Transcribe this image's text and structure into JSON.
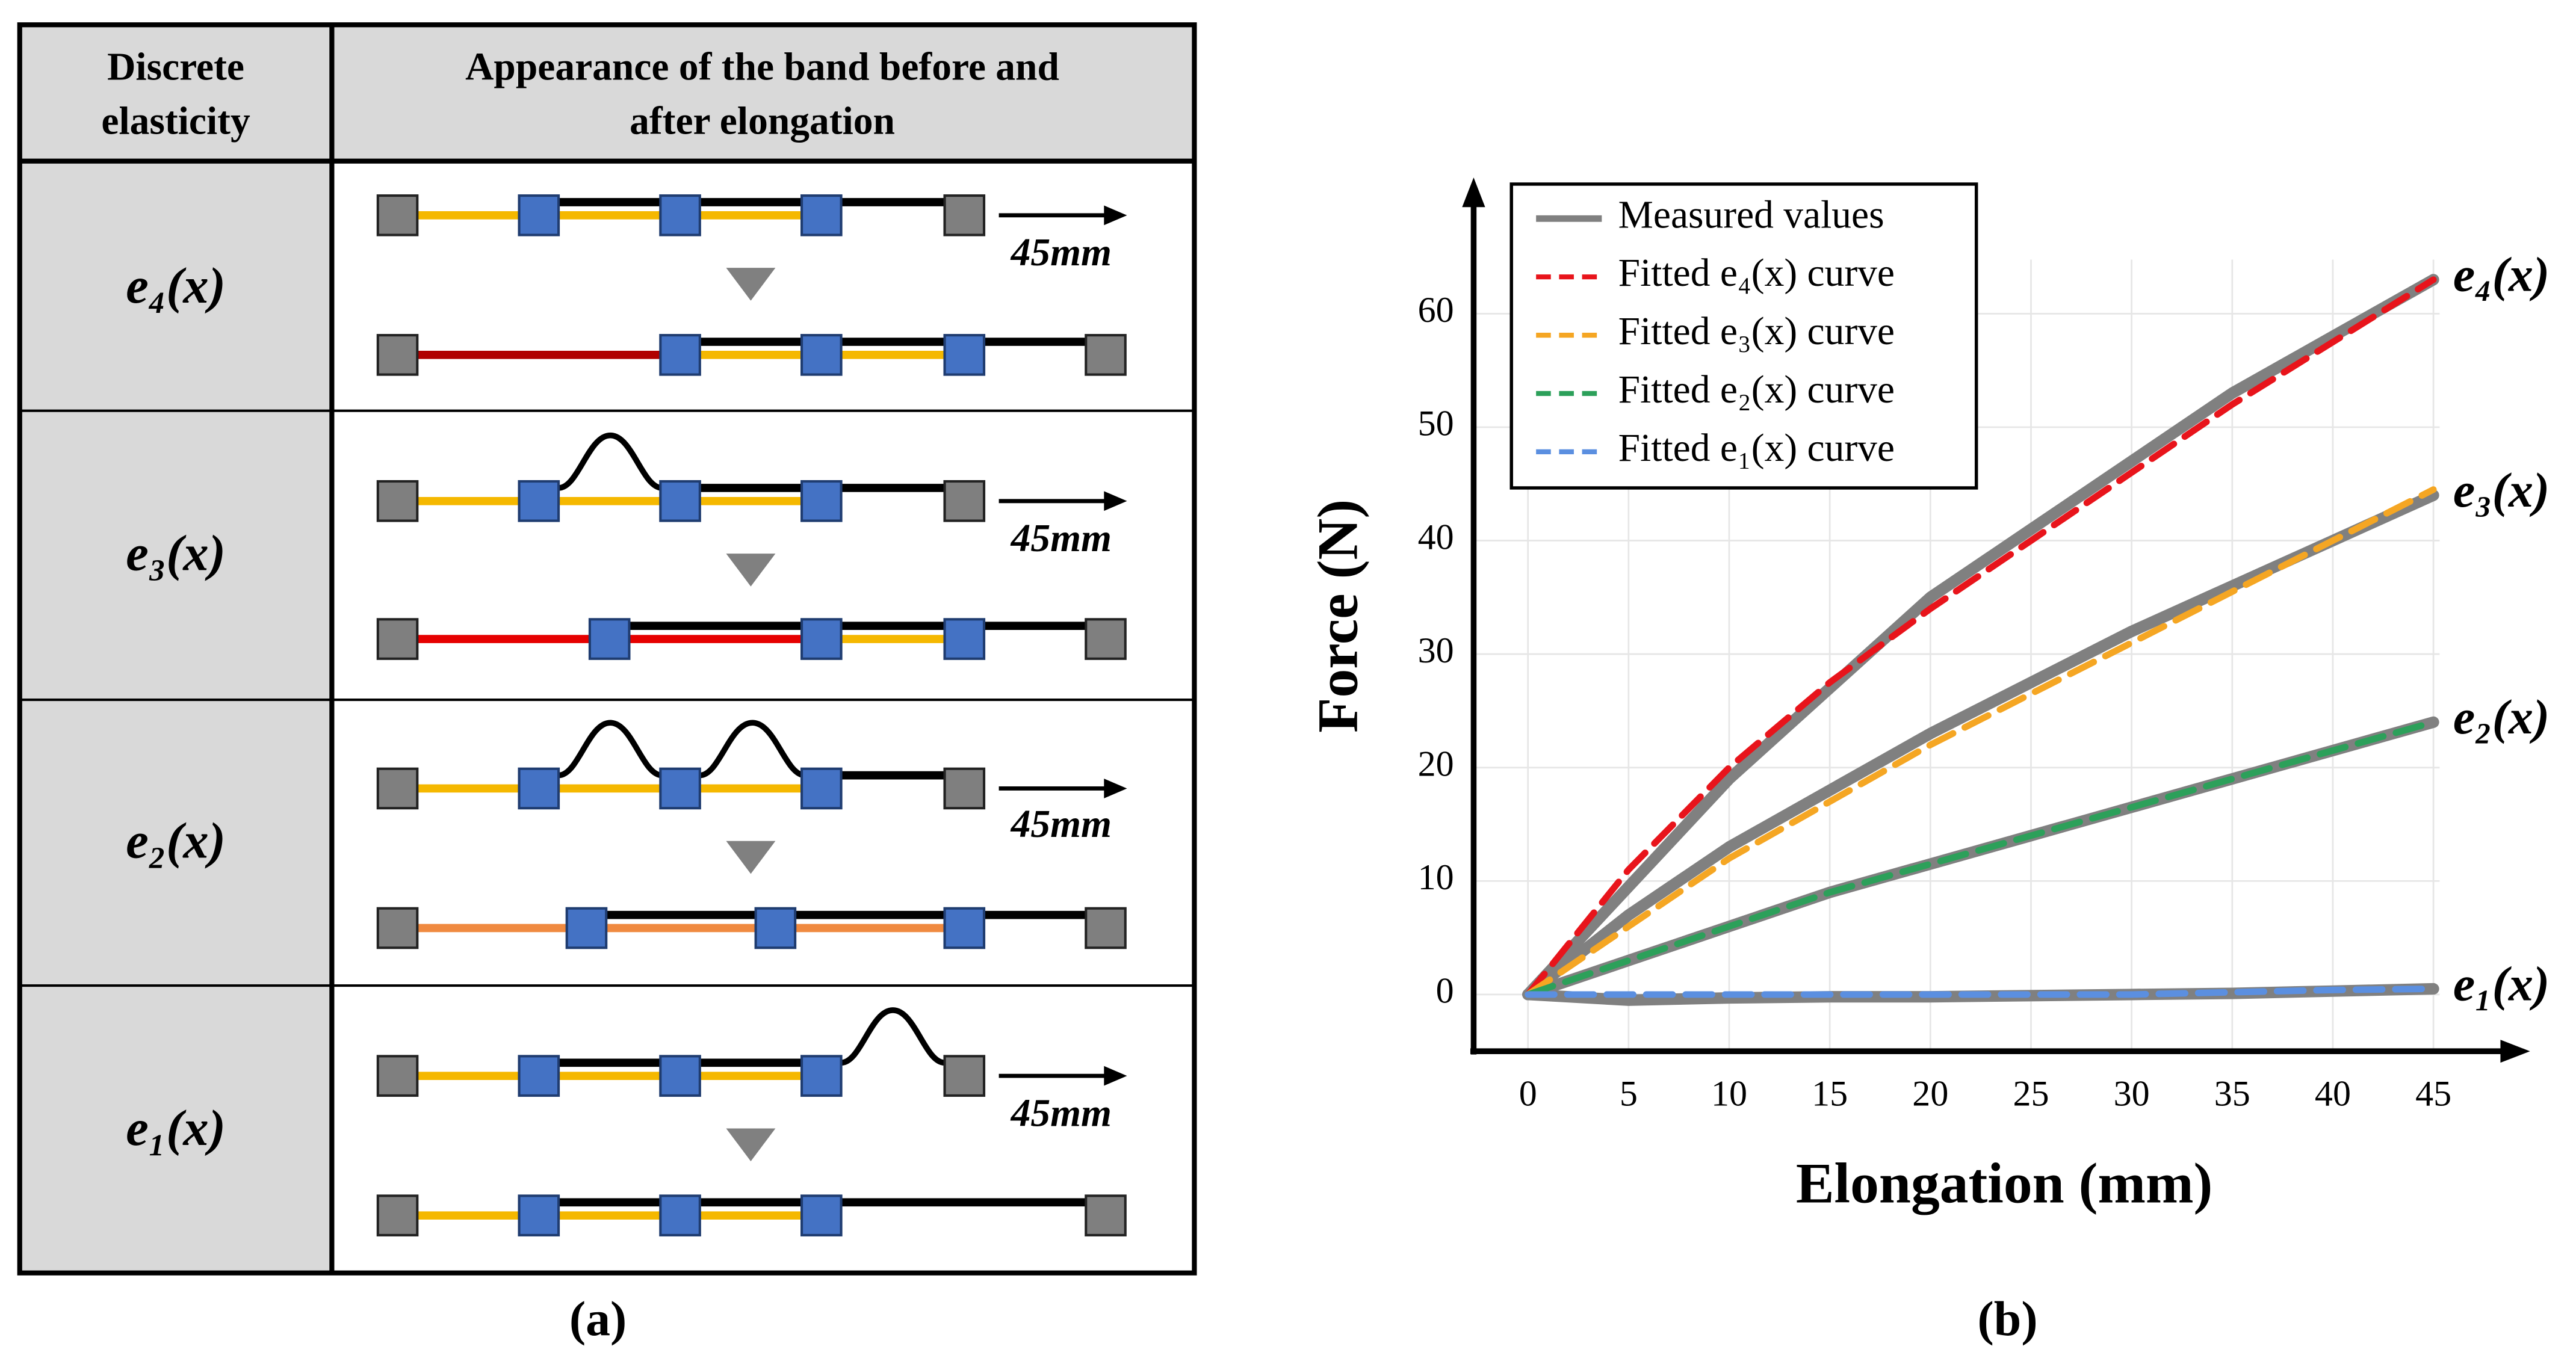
{
  "table": {
    "header": [
      [
        "Discrete",
        "elasticity"
      ],
      [
        "Appearance of the band before and",
        "after elongation"
      ]
    ],
    "rows": [
      {
        "label": "e₄(x)",
        "elongation": "45mm"
      },
      {
        "label": "e₃(x)",
        "elongation": "45mm"
      },
      {
        "label": "e₂(x)",
        "elongation": "45mm"
      },
      {
        "label": "e₁(x)",
        "elongation": "45mm"
      }
    ]
  },
  "captions": [
    "(a)",
    "(b)"
  ],
  "chart_data": {
    "type": "line",
    "xlabel": "Elongation (mm)",
    "ylabel": "Force (N)",
    "x": [
      0,
      5,
      10,
      15,
      20,
      25,
      30,
      35,
      40,
      45
    ],
    "xlim": [
      -2.7,
      49.8
    ],
    "ylim": [
      -5,
      72
    ],
    "xticks": [
      0,
      5,
      10,
      15,
      20,
      25,
      30,
      35,
      40,
      45
    ],
    "yticks": [
      0,
      10,
      20,
      30,
      40,
      50,
      60
    ],
    "grid": true,
    "legend": "upper left",
    "series": [
      {
        "name": "Measured values",
        "color": "#808080",
        "dash": false,
        "curves": [
          {
            "label": "e₄(x)",
            "values": [
              0,
              9.5,
              19,
              27,
              35,
              41,
              47,
              53,
              58,
              63
            ]
          },
          {
            "label": "e₃(x)",
            "values": [
              0,
              7,
              13,
              18,
              23,
              27.5,
              32,
              36,
              40,
              44
            ]
          },
          {
            "label": "e₂(x)",
            "values": [
              0,
              3,
              6,
              9,
              11.5,
              14,
              16.5,
              19,
              21.5,
              24
            ]
          },
          {
            "label": "e₁(x)",
            "values": [
              0,
              -0.5,
              -0.3,
              -0.2,
              -0.2,
              -0.1,
              0,
              0.1,
              0.3,
              0.5
            ]
          }
        ]
      },
      {
        "name": "Fitted e₄(x) curve",
        "color": "#e8141b",
        "dash": true,
        "values": [
          0,
          11,
          20,
          27.5,
          34,
          40,
          46,
          52,
          57.5,
          63
        ]
      },
      {
        "name": "Fitted e₃(x) curve",
        "color": "#f5a623",
        "dash": true,
        "values": [
          0,
          6,
          12,
          17,
          22,
          26.5,
          31,
          35.5,
          40,
          44.5
        ]
      },
      {
        "name": "Fitted e₂(x) curve",
        "color": "#2ca05a",
        "dash": true,
        "values": [
          0,
          3,
          6,
          9,
          11.5,
          14,
          16.5,
          19,
          21.5,
          24
        ]
      },
      {
        "name": "Fitted e₁(x) curve",
        "color": "#5b8fe0",
        "dash": true,
        "values": [
          0,
          0,
          0,
          0,
          0,
          0,
          0,
          0.2,
          0.4,
          0.5
        ]
      }
    ]
  }
}
